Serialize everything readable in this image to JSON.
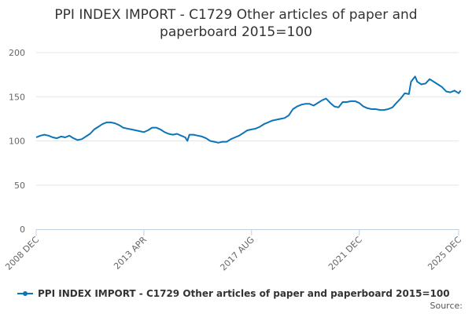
{
  "chart_data": {
    "type": "line",
    "title_line1": "PPI INDEX IMPORT - C1729 Other articles of paper and",
    "title_line2": "paperboard 2015=100",
    "xlabel": "",
    "ylabel": "",
    "ylim": [
      0,
      200
    ],
    "yticks": [
      0,
      50,
      100,
      150,
      200
    ],
    "x_tick_labels": [
      "2008 DEC",
      "2013 APR",
      "2017 AUG",
      "2021 DEC",
      "2025 DEC"
    ],
    "x_tick_dates": [
      "2008-12",
      "2013-04",
      "2017-08",
      "2021-12",
      "2025-12"
    ],
    "grid": true,
    "legend_position": "bottom",
    "line_color": "#0c75b7",
    "series": [
      {
        "name": "PPI INDEX IMPORT - C1729 Other articles of paper and paperboard 2015=100",
        "points": [
          [
            "2008-12",
            104
          ],
          [
            "2009-02",
            106
          ],
          [
            "2009-04",
            107
          ],
          [
            "2009-06",
            106
          ],
          [
            "2009-08",
            104
          ],
          [
            "2009-10",
            103
          ],
          [
            "2009-12",
            105
          ],
          [
            "2010-02",
            104
          ],
          [
            "2010-04",
            106
          ],
          [
            "2010-06",
            103
          ],
          [
            "2010-08",
            101
          ],
          [
            "2010-10",
            102
          ],
          [
            "2010-12",
            105
          ],
          [
            "2011-02",
            108
          ],
          [
            "2011-04",
            113
          ],
          [
            "2011-06",
            116
          ],
          [
            "2011-08",
            119
          ],
          [
            "2011-10",
            121
          ],
          [
            "2011-12",
            121
          ],
          [
            "2012-02",
            120
          ],
          [
            "2012-04",
            118
          ],
          [
            "2012-06",
            115
          ],
          [
            "2012-08",
            114
          ],
          [
            "2012-10",
            113
          ],
          [
            "2012-12",
            112
          ],
          [
            "2013-02",
            111
          ],
          [
            "2013-04",
            110
          ],
          [
            "2013-06",
            112
          ],
          [
            "2013-08",
            115
          ],
          [
            "2013-10",
            115
          ],
          [
            "2013-12",
            113
          ],
          [
            "2014-02",
            110
          ],
          [
            "2014-04",
            108
          ],
          [
            "2014-06",
            107
          ],
          [
            "2014-08",
            108
          ],
          [
            "2014-10",
            106
          ],
          [
            "2014-12",
            104
          ],
          [
            "2015-01",
            100
          ],
          [
            "2015-02",
            107
          ],
          [
            "2015-04",
            107
          ],
          [
            "2015-06",
            106
          ],
          [
            "2015-08",
            105
          ],
          [
            "2015-10",
            103
          ],
          [
            "2015-12",
            100
          ],
          [
            "2016-02",
            99
          ],
          [
            "2016-04",
            98
          ],
          [
            "2016-06",
            99
          ],
          [
            "2016-08",
            99
          ],
          [
            "2016-10",
            102
          ],
          [
            "2016-12",
            104
          ],
          [
            "2017-02",
            106
          ],
          [
            "2017-04",
            109
          ],
          [
            "2017-06",
            112
          ],
          [
            "2017-08",
            113
          ],
          [
            "2017-10",
            114
          ],
          [
            "2017-12",
            116
          ],
          [
            "2018-02",
            119
          ],
          [
            "2018-04",
            121
          ],
          [
            "2018-06",
            123
          ],
          [
            "2018-08",
            124
          ],
          [
            "2018-10",
            125
          ],
          [
            "2018-12",
            126
          ],
          [
            "2019-02",
            129
          ],
          [
            "2019-04",
            136
          ],
          [
            "2019-06",
            139
          ],
          [
            "2019-08",
            141
          ],
          [
            "2019-10",
            142
          ],
          [
            "2019-12",
            142
          ],
          [
            "2020-02",
            140
          ],
          [
            "2020-04",
            143
          ],
          [
            "2020-06",
            146
          ],
          [
            "2020-08",
            148
          ],
          [
            "2020-10",
            143
          ],
          [
            "2020-12",
            139
          ],
          [
            "2021-02",
            138
          ],
          [
            "2021-04",
            144
          ],
          [
            "2021-06",
            144
          ],
          [
            "2021-08",
            145
          ],
          [
            "2021-10",
            145
          ],
          [
            "2021-12",
            143
          ],
          [
            "2022-02",
            139
          ],
          [
            "2022-04",
            137
          ],
          [
            "2022-06",
            136
          ],
          [
            "2022-08",
            136
          ],
          [
            "2022-10",
            135
          ],
          [
            "2022-12",
            135
          ],
          [
            "2023-02",
            136
          ],
          [
            "2023-04",
            138
          ],
          [
            "2023-06",
            143
          ],
          [
            "2023-08",
            148
          ],
          [
            "2023-10",
            154
          ],
          [
            "2023-12",
            153
          ],
          [
            "2024-01",
            167
          ],
          [
            "2024-02",
            170
          ],
          [
            "2024-03",
            173
          ],
          [
            "2024-04",
            167
          ],
          [
            "2024-06",
            164
          ],
          [
            "2024-08",
            165
          ],
          [
            "2024-10",
            170
          ],
          [
            "2024-12",
            167
          ],
          [
            "2025-02",
            164
          ],
          [
            "2025-04",
            161
          ],
          [
            "2025-06",
            156
          ],
          [
            "2025-08",
            155
          ],
          [
            "2025-10",
            157
          ],
          [
            "2025-12",
            154
          ],
          [
            "2026-01",
            157
          ]
        ]
      }
    ]
  },
  "credit": "Source:"
}
